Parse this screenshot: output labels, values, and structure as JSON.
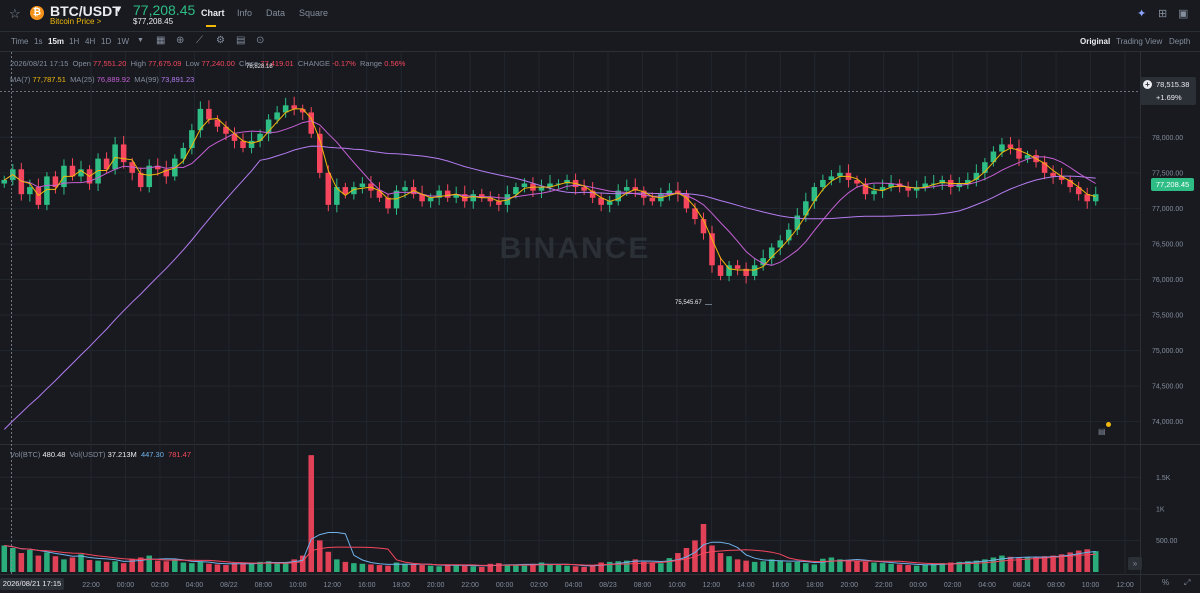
{
  "header": {
    "pair": "BTC/USDT",
    "pair_sub": "Bitcoin Price >",
    "price": "77,208.45",
    "price_sub": "$77,208.45",
    "tabs": [
      "Chart",
      "Info",
      "Data",
      "Square"
    ],
    "active_tab": "Chart"
  },
  "toolbar": {
    "intervals": [
      "Time",
      "1s",
      "15m",
      "1H",
      "4H",
      "1D",
      "1W"
    ],
    "active_interval": "15m",
    "views": [
      "Original",
      "Trading View",
      "Depth"
    ],
    "active_view": "Original"
  },
  "legend": {
    "date": "2026/08/21 17:15",
    "open_label": "Open",
    "open": "77,551.20",
    "high_label": "High",
    "high": "77,675.09",
    "low_label": "Low",
    "low": "77,240.00",
    "close_label": "Close",
    "close": "77,419.01",
    "change_label": "CHANGE",
    "change": "-0.17%",
    "range_label": "Range",
    "range": "0.56%",
    "ma7_label": "MA(7)",
    "ma7": "77,787.51",
    "ma25_label": "MA(25)",
    "ma25": "76,889.92",
    "ma99_label": "MA(99)",
    "ma99": "73,891.23",
    "vol_btc_label": "Vol(BTC)",
    "vol_btc": "480.48",
    "vol_usdt_label": "Vol(USDT)",
    "vol_usdt": "37.213M",
    "vol_ma1": "447.30",
    "vol_ma2": "781.47"
  },
  "annotations": {
    "high_mark": "78,828.18",
    "low_mark": "75,545.67",
    "crosshair_price": "78,515.38",
    "crosshair_pct": "+1.69%",
    "last_price": "77,208.45",
    "cursor_time": "2026/08/21 17:15",
    "percent_toggle": "%"
  },
  "chart_data": {
    "type": "candlestick",
    "price_ticks": [
      "78,000.00",
      "77,500.00",
      "77,000.00",
      "76,500.00",
      "76,000.00",
      "75,500.00",
      "75,000.00",
      "74,500.00",
      "74,000.00"
    ],
    "volume_ticks": [
      "1.5K",
      "1K",
      "500.00"
    ],
    "time_ticks": [
      "22:00",
      "00:00",
      "02:00",
      "04:00",
      "08/22",
      "08:00",
      "10:00",
      "12:00",
      "16:00",
      "18:00",
      "20:00",
      "22:00",
      "00:00",
      "02:00",
      "04:00",
      "08/23",
      "08:00",
      "10:00",
      "12:00",
      "14:00",
      "16:00",
      "18:00",
      "20:00",
      "22:00",
      "00:00",
      "02:00",
      "04:00",
      "08/24",
      "08:00",
      "10:00",
      "12:00"
    ],
    "price_range": [
      73700,
      79200
    ],
    "volume_range": [
      0,
      1900
    ],
    "close_series": [
      77400,
      77550,
      77200,
      77300,
      77050,
      77450,
      77300,
      77600,
      77450,
      77550,
      77350,
      77700,
      77550,
      77900,
      77650,
      77500,
      77300,
      77600,
      77550,
      77450,
      77700,
      77850,
      78100,
      78400,
      78250,
      78150,
      78050,
      77950,
      77850,
      77950,
      78050,
      78250,
      78350,
      78450,
      78400,
      78350,
      78050,
      77500,
      77050,
      77300,
      77200,
      77300,
      77350,
      77250,
      77150,
      77000,
      77250,
      77300,
      77200,
      77100,
      77150,
      77250,
      77150,
      77200,
      77100,
      77200,
      77150,
      77100,
      77050,
      77200,
      77300,
      77350,
      77250,
      77300,
      77350,
      77350,
      77400,
      77300,
      77250,
      77150,
      77050,
      77100,
      77250,
      77300,
      77250,
      77150,
      77100,
      77200,
      77250,
      77200,
      77000,
      76850,
      76650,
      76200,
      76050,
      76200,
      76150,
      76050,
      76200,
      76300,
      76450,
      76550,
      76700,
      76900,
      77100,
      77300,
      77400,
      77450,
      77500,
      77400,
      77350,
      77200,
      77250,
      77300,
      77350,
      77300,
      77250,
      77300,
      77350,
      77350,
      77400,
      77300,
      77350,
      77400,
      77500,
      77650,
      77800,
      77900,
      77850,
      77700,
      77750,
      77650,
      77500,
      77450,
      77400,
      77300,
      77200,
      77100,
      77200
    ],
    "volume_series": [
      420,
      380,
      300,
      350,
      260,
      310,
      250,
      200,
      230,
      280,
      190,
      180,
      160,
      170,
      140,
      210,
      230,
      260,
      180,
      170,
      200,
      150,
      140,
      160,
      130,
      120,
      110,
      140,
      150,
      130,
      160,
      170,
      140,
      150,
      200,
      260,
      1850,
      500,
      320,
      200,
      160,
      140,
      130,
      120,
      110,
      100,
      150,
      130,
      120,
      110,
      100,
      90,
      120,
      110,
      100,
      90,
      80,
      130,
      140,
      120,
      110,
      100,
      130,
      150,
      120,
      110,
      100,
      90,
      80,
      110,
      150,
      160,
      170,
      180,
      200,
      160,
      150,
      140,
      220,
      300,
      380,
      500,
      760,
      420,
      300,
      250,
      200,
      180,
      160,
      170,
      200,
      180,
      150,
      160,
      140,
      120,
      210,
      230,
      200,
      180,
      170,
      160,
      150,
      140,
      130,
      120,
      110,
      100,
      120,
      130,
      140,
      150,
      160,
      170,
      180,
      200,
      230,
      260,
      240,
      220,
      230,
      240,
      250,
      260,
      280,
      310,
      340,
      360,
      330
    ]
  },
  "colors": {
    "up": "#2ebd85",
    "down": "#f6465d",
    "ma7": "#f0b90b",
    "ma25": "#c65fd4",
    "ma99": "#b47cf0",
    "accent": "#f0b90b",
    "background": "#181a20"
  },
  "watermark": "BINANCE",
  "icons": [
    "star-icon",
    "bitcoin-icon",
    "caret-down-icon",
    "sparkle-icon",
    "grid-icon",
    "layout-icon",
    "calendar-icon",
    "add-icon",
    "indicator-icon",
    "settings-icon",
    "more-icon",
    "fullscreen-icon",
    "scroll-right-icon"
  ]
}
